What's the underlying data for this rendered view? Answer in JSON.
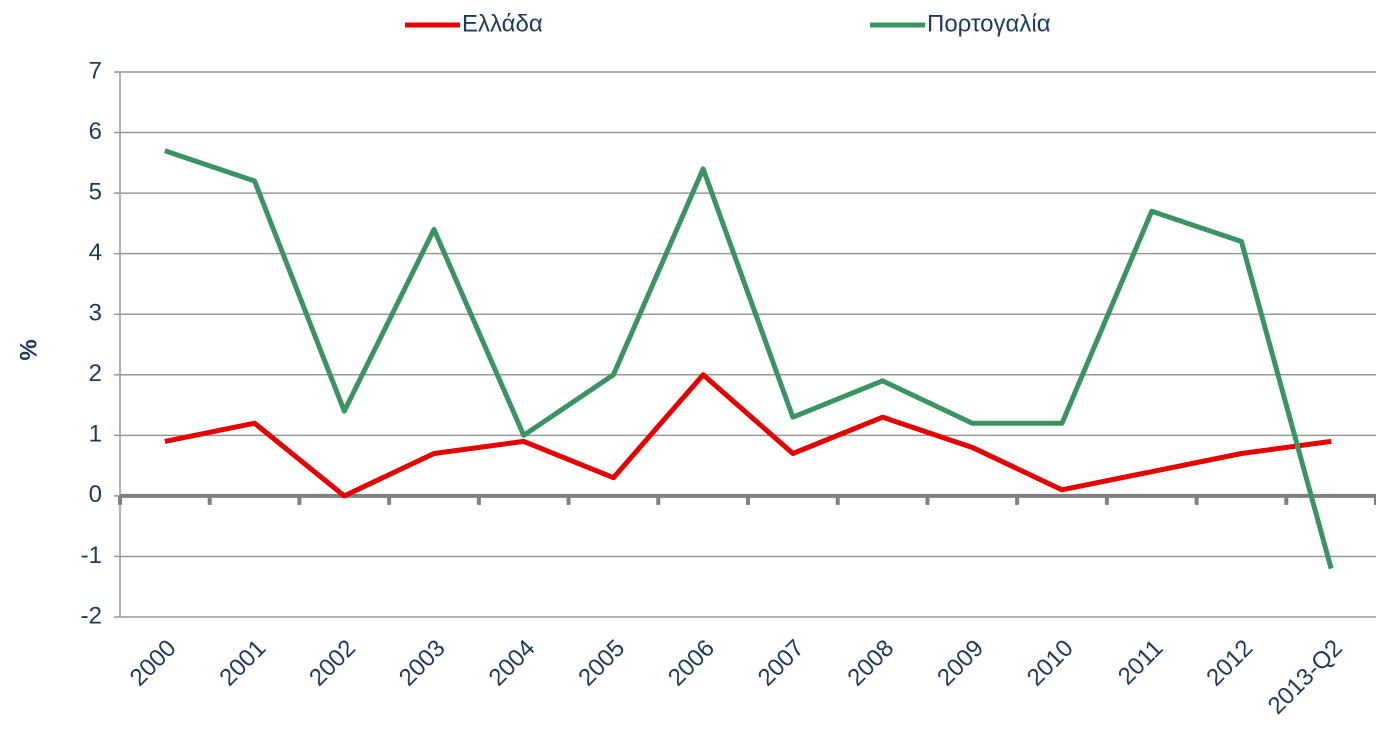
{
  "chart_data": {
    "type": "line",
    "y_label": "%",
    "categories": [
      "2000",
      "2001",
      "2002",
      "2003",
      "2004",
      "2005",
      "2006",
      "2007",
      "2008",
      "2009",
      "2010",
      "2011",
      "2012",
      "2013-Q2"
    ],
    "series": [
      {
        "name": "Ελλάδα",
        "color": "#e60000",
        "values": [
          0.9,
          1.2,
          0.0,
          0.7,
          0.9,
          0.3,
          2.0,
          0.7,
          1.3,
          0.8,
          0.1,
          0.4,
          0.7,
          0.9
        ]
      },
      {
        "name": "Πορτογαλία",
        "color": "#3a9461",
        "values": [
          5.7,
          5.2,
          1.4,
          4.4,
          1.0,
          2.0,
          5.4,
          1.3,
          1.9,
          1.2,
          1.2,
          4.7,
          4.2,
          -1.2
        ]
      }
    ],
    "ylim": [
      -2,
      7
    ],
    "yticks": [
      -2,
      -1,
      0,
      1,
      2,
      3,
      4,
      5,
      6,
      7
    ],
    "grid": true,
    "legend": "top"
  }
}
